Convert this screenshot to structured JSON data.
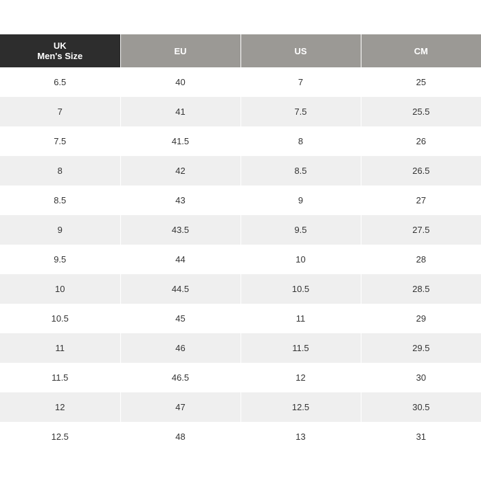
{
  "table": {
    "header": [
      "UK\nMen's Size",
      "EU",
      "US",
      "CM"
    ],
    "rows": [
      [
        "6.5",
        "40",
        "7",
        "25"
      ],
      [
        "7",
        "41",
        "7.5",
        "25.5"
      ],
      [
        "7.5",
        "41.5",
        "8",
        "26"
      ],
      [
        "8",
        "42",
        "8.5",
        "26.5"
      ],
      [
        "8.5",
        "43",
        "9",
        "27"
      ],
      [
        "9",
        "43.5",
        "9.5",
        "27.5"
      ],
      [
        "9.5",
        "44",
        "10",
        "28"
      ],
      [
        "10",
        "44.5",
        "10.5",
        "28.5"
      ],
      [
        "10.5",
        "45",
        "11",
        "29"
      ],
      [
        "11",
        "46",
        "11.5",
        "29.5"
      ],
      [
        "11.5",
        "46.5",
        "12",
        "30"
      ],
      [
        "12",
        "47",
        "12.5",
        "30.5"
      ],
      [
        "12.5",
        "48",
        "13",
        "31"
      ]
    ]
  }
}
